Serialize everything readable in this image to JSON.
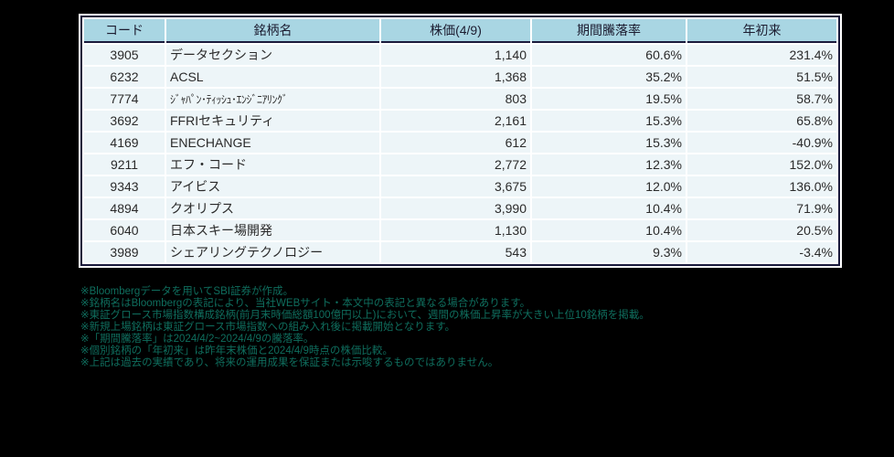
{
  "table": {
    "columns": [
      {
        "key": "code",
        "label": "コード"
      },
      {
        "key": "name",
        "label": "銘柄名"
      },
      {
        "key": "price",
        "label": "株価(4/9)"
      },
      {
        "key": "period_change",
        "label": "期間騰落率"
      },
      {
        "key": "ytd",
        "label": "年初来"
      }
    ],
    "rows": [
      {
        "code": "3905",
        "name": "データセクション",
        "price": "1,140",
        "period_change": "60.6%",
        "ytd": "231.4%"
      },
      {
        "code": "6232",
        "name": "ACSL",
        "price": "1,368",
        "period_change": "35.2%",
        "ytd": "51.5%"
      },
      {
        "code": "7774",
        "name": "ｼﾞｬﾊﾟﾝ･ﾃｨｯｼｭ･ｴﾝｼﾞﾆｱﾘﾝｸﾞ",
        "price": "803",
        "period_change": "19.5%",
        "ytd": "58.7%"
      },
      {
        "code": "3692",
        "name": "FFRIセキュリティ",
        "price": "2,161",
        "period_change": "15.3%",
        "ytd": "65.8%"
      },
      {
        "code": "4169",
        "name": "ENECHANGE",
        "price": "612",
        "period_change": "15.3%",
        "ytd": "-40.9%"
      },
      {
        "code": "9211",
        "name": "エフ・コード",
        "price": "2,772",
        "period_change": "12.3%",
        "ytd": "152.0%"
      },
      {
        "code": "9343",
        "name": "アイビス",
        "price": "3,675",
        "period_change": "12.0%",
        "ytd": "136.0%"
      },
      {
        "code": "4894",
        "name": "クオリプス",
        "price": "3,990",
        "period_change": "10.4%",
        "ytd": "71.9%"
      },
      {
        "code": "6040",
        "name": "日本スキー場開発",
        "price": "1,130",
        "period_change": "10.4%",
        "ytd": "20.5%"
      },
      {
        "code": "3989",
        "name": "シェアリングテクノロジー",
        "price": "543",
        "period_change": "9.3%",
        "ytd": "-3.4%"
      }
    ]
  },
  "footnotes": [
    "※Bloombergデータを用いてSBI証券が作成。",
    "※銘柄名はBloombergの表記により、当社WEBサイト・本文中の表記と異なる場合があります。",
    "※東証グロース市場指数構成銘柄(前月末時価総額100億円以上)において、週間の株価上昇率が大きい上位10銘柄を掲載。",
    "※新規上場銘柄は東証グロース市場指数への組み入れ後に掲載開始となります。",
    "※「期間騰落率」は2024/4/2~2024/4/9の騰落率。",
    "※個別銘柄の「年初来」は昨年末株価と2024/4/9時点の株価比較。",
    "※上記は過去の実績であり、将来の運用成果を保証または示唆するものではありません。"
  ],
  "colors": {
    "page_bg": "#000000",
    "header_bg": "#a9d6e3",
    "row_bg": "#edf5f8",
    "table_border": "#1a1a3c",
    "footnote_text": "#0f6e5e"
  }
}
